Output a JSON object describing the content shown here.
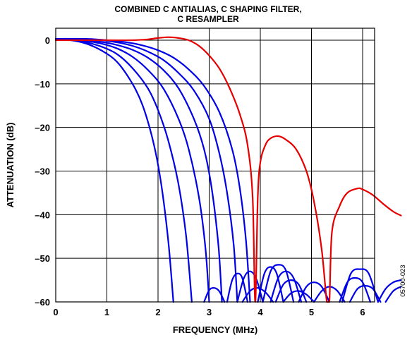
{
  "chart_data": {
    "type": "line",
    "title_lines": [
      "COMBINED C ANTIALIAS, C SHAPING FILTER,",
      "C RESAMPLER"
    ],
    "xlabel": "FREQUENCY (MHz)",
    "ylabel": "ATTENUATION (dB)",
    "xlim": [
      0,
      6.75
    ],
    "ylim": [
      -60,
      2
    ],
    "xticks": [
      0,
      1,
      2,
      3,
      4,
      5,
      6
    ],
    "yticks": [
      0,
      -10,
      -20,
      -30,
      -40,
      -50,
      -60
    ],
    "grid": true,
    "figure_code": "05700-023",
    "colors": {
      "blue": "#0000e6",
      "red": "#e60000"
    },
    "series": [
      {
        "color": "red",
        "x": [
          0,
          0.5,
          1.0,
          1.5,
          1.8,
          2.0,
          2.2,
          2.4,
          2.6,
          2.8,
          3.0,
          3.2,
          3.4,
          3.6,
          3.75,
          3.85,
          3.9,
          3.95,
          4.0,
          4.1,
          4.2,
          4.35,
          4.5,
          4.7,
          4.9,
          5.05,
          5.2,
          5.3,
          5.35,
          5.4,
          5.55,
          5.7,
          5.9,
          6.0,
          6.2,
          6.4,
          6.6,
          6.75
        ],
        "y": [
          0,
          0,
          0,
          0,
          0.2,
          0.5,
          0.7,
          0.5,
          0,
          -1.3,
          -3.5,
          -6.5,
          -11,
          -17,
          -24,
          -36,
          -60,
          -36,
          -28,
          -24,
          -22.5,
          -22,
          -22.8,
          -25,
          -30,
          -37,
          -48,
          -60,
          -60,
          -44,
          -38,
          -35,
          -34,
          -34.2,
          -35.5,
          -37.5,
          -39.3,
          -40.2
        ]
      },
      {
        "color": "blue",
        "x": [
          0,
          0.3,
          0.6,
          0.9,
          1.2,
          1.5,
          1.7,
          1.9,
          2.05,
          2.2,
          2.3
        ],
        "y": [
          0.3,
          0,
          -0.8,
          -2.4,
          -5,
          -10,
          -15,
          -23,
          -32,
          -46,
          -60
        ]
      },
      {
        "color": "blue",
        "x": [
          0,
          0.3,
          0.6,
          0.9,
          1.2,
          1.5,
          1.8,
          2.0,
          2.2,
          2.4,
          2.55,
          2.66
        ],
        "y": [
          0.3,
          0,
          -0.5,
          -1.5,
          -3.2,
          -6.4,
          -11,
          -16,
          -23,
          -33,
          -45,
          -60
        ]
      },
      {
        "color": "blue",
        "x": [
          0,
          0.3,
          0.6,
          0.9,
          1.2,
          1.5,
          1.8,
          2.1,
          2.4,
          2.6,
          2.8,
          2.93,
          3.0
        ],
        "y": [
          0.3,
          0.2,
          -0.2,
          -0.8,
          -1.9,
          -3.8,
          -6.8,
          -11,
          -18,
          -25,
          -36,
          -48,
          -60
        ]
      },
      {
        "color": "blue",
        "x": [
          0,
          0.3,
          0.6,
          0.9,
          1.2,
          1.5,
          1.8,
          2.1,
          2.4,
          2.7,
          2.9,
          3.05,
          3.18,
          3.25
        ],
        "y": [
          0.3,
          0.3,
          0,
          -0.4,
          -1.1,
          -2.2,
          -4,
          -6.8,
          -11,
          -18,
          -25,
          -34,
          -47,
          -60
        ]
      },
      {
        "color": "blue",
        "x": [
          0,
          0.3,
          0.6,
          0.9,
          1.2,
          1.5,
          1.8,
          2.1,
          2.4,
          2.7,
          3.0,
          3.2,
          3.35,
          3.48,
          3.55
        ],
        "y": [
          0.3,
          0.3,
          0.2,
          0,
          -0.5,
          -1.3,
          -2.6,
          -4.5,
          -7.5,
          -11.5,
          -18,
          -26,
          -35,
          -47,
          -60
        ]
      },
      {
        "color": "blue",
        "x": [
          0,
          0.6,
          1.0,
          1.4,
          1.7,
          2.0,
          2.3,
          2.6,
          2.9,
          3.2,
          3.45,
          3.6,
          3.72,
          3.8
        ],
        "y": [
          0.3,
          0.3,
          0,
          -0.5,
          -1.2,
          -2.3,
          -4,
          -6.7,
          -10.5,
          -16.5,
          -25,
          -34,
          -46,
          -60
        ]
      },
      {
        "color": "blue",
        "x": [
          2.9,
          3.0,
          3.1,
          3.2,
          3.3
        ],
        "y": [
          -60,
          -57.3,
          -56.8,
          -57.6,
          -60
        ]
      },
      {
        "color": "blue",
        "x": [
          3.35,
          3.45,
          3.55,
          3.65,
          3.75
        ],
        "y": [
          -60,
          -55,
          -53.5,
          -54.6,
          -60
        ]
      },
      {
        "color": "blue",
        "x": [
          3.55,
          3.68,
          3.8,
          3.92,
          4.05
        ],
        "y": [
          -60,
          -54.5,
          -53,
          -54.7,
          -60
        ]
      },
      {
        "color": "blue",
        "x": [
          3.95,
          4.08,
          4.2,
          4.32,
          4.45
        ],
        "y": [
          -60,
          -53.5,
          -52,
          -53.5,
          -60
        ]
      },
      {
        "color": "blue",
        "x": [
          3.65,
          3.8,
          3.95,
          4.1,
          4.25
        ],
        "y": [
          -60,
          -57.5,
          -56.8,
          -57.8,
          -60
        ]
      },
      {
        "color": "blue",
        "x": [
          4.05,
          4.2,
          4.35,
          4.5,
          4.65
        ],
        "y": [
          -60,
          -53,
          -51.5,
          -52.8,
          -60
        ]
      },
      {
        "color": "blue",
        "x": [
          4.2,
          4.35,
          4.5,
          4.65,
          4.8
        ],
        "y": [
          -60,
          -54.5,
          -53,
          -54.5,
          -60
        ]
      },
      {
        "color": "blue",
        "x": [
          4.3,
          4.45,
          4.6,
          4.75,
          4.9
        ],
        "y": [
          -60,
          -56,
          -55,
          -56,
          -60
        ]
      },
      {
        "color": "blue",
        "x": [
          4.45,
          4.6,
          4.75,
          4.9,
          5.05
        ],
        "y": [
          -60,
          -58,
          -57.5,
          -58.3,
          -60
        ]
      },
      {
        "color": "blue",
        "x": [
          4.75,
          4.9,
          5.05,
          5.2,
          5.35
        ],
        "y": [
          -60,
          -56.5,
          -55.5,
          -56.5,
          -60
        ]
      },
      {
        "color": "blue",
        "x": [
          5.05,
          5.2,
          5.35,
          5.5,
          5.65
        ],
        "y": [
          -60,
          -57.5,
          -56.5,
          -57.4,
          -60
        ]
      },
      {
        "color": "blue",
        "x": [
          5.55,
          5.7,
          5.85,
          6.0,
          6.15
        ],
        "y": [
          -60,
          -55.5,
          -54.5,
          -55.5,
          -60
        ]
      },
      {
        "color": "blue",
        "x": [
          5.6,
          5.77,
          5.95,
          6.12,
          6.3
        ],
        "y": [
          -60,
          -53.5,
          -52.5,
          -53.5,
          -60
        ]
      },
      {
        "color": "blue",
        "x": [
          5.75,
          5.9,
          6.05,
          6.2,
          6.35
        ],
        "y": [
          -60,
          -57,
          -56.3,
          -57,
          -60
        ]
      },
      {
        "color": "blue",
        "x": [
          6.3,
          6.45,
          6.6,
          6.75
        ],
        "y": [
          -60,
          -57,
          -55.5,
          -55
        ]
      },
      {
        "color": "blue",
        "x": [
          6.45,
          6.6,
          6.75
        ],
        "y": [
          -60,
          -57.5,
          -56.5
        ]
      }
    ]
  }
}
